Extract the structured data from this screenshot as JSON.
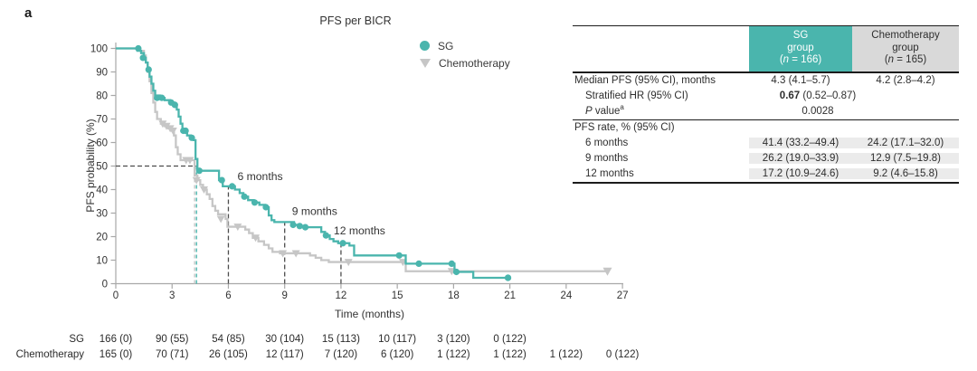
{
  "panel_label": "a",
  "colors": {
    "sg_teal": "#4ab5ad",
    "chemo_gray": "#c6c6c6",
    "axis": "#a8a8a8",
    "dash_dark": "#4d4d4d",
    "text": "#333333",
    "table_header_gray": "#d9d9d9",
    "table_shade": "#ebebeb",
    "header_text_on_teal": "#ffffff"
  },
  "chart_data": {
    "type": "line",
    "subtype": "kaplan-meier-step",
    "title": "PFS per BICR",
    "xlabel": "Time (months)",
    "ylabel": "PFS probability (%)",
    "xlim": [
      0,
      27
    ],
    "ylim": [
      0,
      100
    ],
    "xticks": [
      0,
      3,
      6,
      9,
      12,
      15,
      18,
      21,
      24,
      27
    ],
    "yticks": [
      0,
      10,
      20,
      30,
      40,
      50,
      60,
      70,
      80,
      90,
      100
    ],
    "grid": false,
    "legend_position": "upper right",
    "series": [
      {
        "name": "Chemotherapy",
        "marker": "triangle-down",
        "color_key": "chemo_gray",
        "end_t": 26.2,
        "end_marker": "triangle-down",
        "steps": [
          [
            0,
            100
          ],
          [
            1.3,
            99
          ],
          [
            1.5,
            97
          ],
          [
            1.6,
            94
          ],
          [
            1.7,
            90
          ],
          [
            1.8,
            86
          ],
          [
            1.9,
            81
          ],
          [
            2.0,
            77
          ],
          [
            2.1,
            73
          ],
          [
            2.2,
            70
          ],
          [
            2.4,
            68
          ],
          [
            2.6,
            67
          ],
          [
            2.8,
            66
          ],
          [
            3.0,
            65
          ],
          [
            3.1,
            63
          ],
          [
            3.2,
            58
          ],
          [
            3.3,
            55
          ],
          [
            3.45,
            52.5
          ],
          [
            4.2,
            46
          ],
          [
            4.35,
            44
          ],
          [
            4.5,
            42
          ],
          [
            4.65,
            40
          ],
          [
            4.85,
            38
          ],
          [
            5.0,
            36
          ],
          [
            5.15,
            33
          ],
          [
            5.3,
            31
          ],
          [
            5.45,
            29.5
          ],
          [
            5.85,
            27.5
          ],
          [
            5.95,
            24.2
          ],
          [
            6.9,
            23
          ],
          [
            7.1,
            21.5
          ],
          [
            7.3,
            19.5
          ],
          [
            7.6,
            18
          ],
          [
            7.9,
            16.5
          ],
          [
            8.15,
            15
          ],
          [
            8.35,
            13.5
          ],
          [
            8.75,
            12.9
          ],
          [
            10.35,
            12
          ],
          [
            10.65,
            11
          ],
          [
            10.95,
            10
          ],
          [
            11.35,
            9.2
          ],
          [
            15.45,
            5.3
          ]
        ],
        "censors": [
          [
            2.5,
            68
          ],
          [
            2.7,
            67
          ],
          [
            2.9,
            66
          ],
          [
            3.05,
            65
          ],
          [
            3.75,
            52.5
          ],
          [
            3.95,
            52.5
          ],
          [
            4.3,
            44
          ],
          [
            4.7,
            40
          ],
          [
            5.6,
            27.5
          ],
          [
            6.5,
            24.2
          ],
          [
            7.45,
            19.5
          ],
          [
            8.9,
            12.9
          ],
          [
            9.6,
            12.9
          ],
          [
            12.4,
            9.2
          ],
          [
            15.3,
            9.2
          ],
          [
            17.9,
            5.3
          ]
        ]
      },
      {
        "name": "SG",
        "marker": "circle",
        "color_key": "sg_teal",
        "end_t": 20.9,
        "end_marker": "circle",
        "steps": [
          [
            0,
            100
          ],
          [
            1.15,
            99
          ],
          [
            1.35,
            98
          ],
          [
            1.5,
            96
          ],
          [
            1.6,
            94
          ],
          [
            1.7,
            91
          ],
          [
            1.8,
            88
          ],
          [
            1.9,
            85
          ],
          [
            2.0,
            82
          ],
          [
            2.1,
            80
          ],
          [
            2.35,
            79
          ],
          [
            2.6,
            78
          ],
          [
            2.9,
            77
          ],
          [
            3.1,
            76
          ],
          [
            3.25,
            74
          ],
          [
            3.35,
            71
          ],
          [
            3.45,
            68
          ],
          [
            3.55,
            65
          ],
          [
            3.8,
            63
          ],
          [
            4.0,
            62
          ],
          [
            4.15,
            61
          ],
          [
            4.25,
            53
          ],
          [
            4.35,
            48
          ],
          [
            5.5,
            44
          ],
          [
            5.7,
            41.4
          ],
          [
            6.35,
            40
          ],
          [
            6.6,
            38.5
          ],
          [
            6.8,
            37
          ],
          [
            7.05,
            35.5
          ],
          [
            7.35,
            34.5
          ],
          [
            7.65,
            33.5
          ],
          [
            7.95,
            32.5
          ],
          [
            8.15,
            29
          ],
          [
            8.3,
            27
          ],
          [
            8.45,
            26.2
          ],
          [
            9.5,
            25
          ],
          [
            9.75,
            24.5
          ],
          [
            10.05,
            24
          ],
          [
            10.95,
            22
          ],
          [
            11.15,
            20.5
          ],
          [
            11.4,
            19
          ],
          [
            11.6,
            18
          ],
          [
            11.85,
            17.2
          ],
          [
            12.45,
            16.2
          ],
          [
            12.7,
            12
          ],
          [
            15.45,
            8.5
          ],
          [
            18.05,
            5
          ],
          [
            19.05,
            2.5
          ]
        ],
        "censors": [
          [
            1.2,
            100
          ],
          [
            1.45,
            96
          ],
          [
            1.75,
            91
          ],
          [
            2.2,
            79
          ],
          [
            2.45,
            79
          ],
          [
            2.95,
            77
          ],
          [
            3.15,
            76
          ],
          [
            3.6,
            65
          ],
          [
            3.72,
            65
          ],
          [
            4.05,
            62
          ],
          [
            4.45,
            48
          ],
          [
            5.65,
            44
          ],
          [
            6.2,
            41.4
          ],
          [
            6.85,
            37
          ],
          [
            7.4,
            34.5
          ],
          [
            8.0,
            32.5
          ],
          [
            9.45,
            25
          ],
          [
            9.8,
            24.5
          ],
          [
            10.1,
            24
          ],
          [
            11.2,
            20.5
          ],
          [
            12.1,
            17.2
          ],
          [
            15.1,
            12
          ],
          [
            16.15,
            8.5
          ],
          [
            17.9,
            8.5
          ],
          [
            18.15,
            5
          ],
          [
            20.9,
            2.5
          ]
        ]
      }
    ],
    "annotations": {
      "median_reference_pct": 50,
      "medians": {
        "sg": 4.3,
        "chemo": 4.2
      },
      "milestones": [
        {
          "x": 6,
          "y_top": 41.4,
          "label": "6 months"
        },
        {
          "x": 9,
          "y_top": 26.2,
          "label": "9 months"
        },
        {
          "x": 12,
          "y_top": 17.2,
          "label": "12 months"
        }
      ]
    }
  },
  "legend": [
    {
      "label": "SG",
      "marker": "circle",
      "color_key": "sg_teal"
    },
    {
      "label": "Chemotherapy",
      "marker": "triangle-down",
      "color_key": "chemo_gray"
    }
  ],
  "summary_table": {
    "group_columns": [
      {
        "lines": [
          "SG",
          "group",
          "(n = 166)"
        ],
        "bg_key": "sg_teal",
        "text": "white",
        "width": 114
      },
      {
        "lines": [
          "Chemotherapy",
          "group",
          "(n = 165)"
        ],
        "bg_key": "table_header_gray",
        "text": "dark",
        "width": 118
      }
    ],
    "rows": [
      {
        "label": "Median PFS (95% CI), months",
        "indent": false,
        "values": [
          "4.3 (4.1–5.7)",
          "4.2 (2.8–4.2)"
        ]
      },
      {
        "label": "Stratified HR (95% CI)",
        "indent": true,
        "span_value": "0.67 (0.52–0.87)",
        "bold_part": "0.67"
      },
      {
        "label": "P value",
        "italic_first_word": true,
        "sup": "a",
        "indent": true,
        "span_value": "0.0028",
        "bold_part": ""
      },
      {
        "type": "divider"
      },
      {
        "label": "PFS rate, % (95% CI)",
        "indent": false,
        "values": [
          "",
          ""
        ],
        "shade": true
      },
      {
        "label": "6 months",
        "indent": true,
        "values": [
          "41.4 (33.2–49.4)",
          "24.2 (17.1–32.0)"
        ],
        "shade": true
      },
      {
        "label": "9 months",
        "indent": true,
        "values": [
          "26.2 (19.0–33.9)",
          "12.9 (7.5–19.8)"
        ],
        "shade": true
      },
      {
        "label": "12 months",
        "indent": true,
        "values": [
          "17.2 (10.9–24.6)",
          "9.2 (4.6–15.8)"
        ],
        "shade": true
      }
    ]
  },
  "risk_table": {
    "rows": [
      {
        "label": "SG",
        "counts": [
          "166 (0)",
          "90 (55)",
          "54 (85)",
          "30 (104)",
          "15 (113)",
          "10 (117)",
          "3 (120)",
          "0 (122)"
        ]
      },
      {
        "label": "Chemotherapy",
        "counts": [
          "165 (0)",
          "70 (71)",
          "26 (105)",
          "12 (117)",
          "7 (120)",
          "6 (120)",
          "1 (122)",
          "1 (122)",
          "1 (122)",
          "0 (122)"
        ]
      }
    ]
  }
}
